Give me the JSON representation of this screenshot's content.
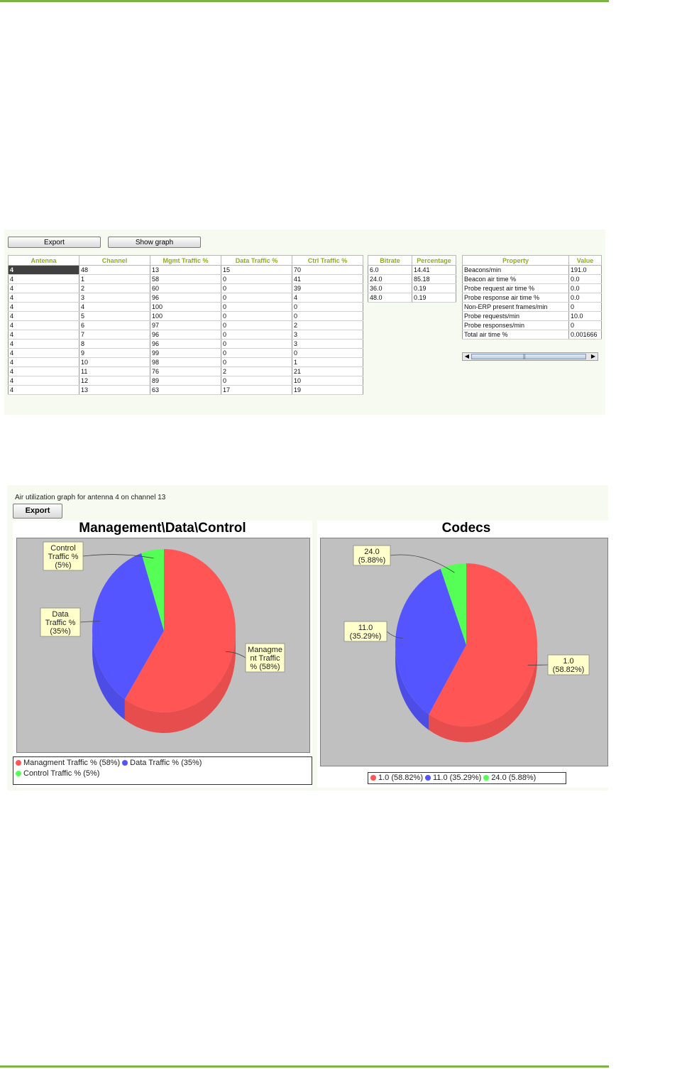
{
  "colors": {
    "rule": "#7cb342",
    "header_text": "#8aae1f",
    "mgmt": "#ff5555",
    "data": "#5555ff",
    "control": "#55ff55",
    "label_bg": "#ffffcc"
  },
  "toolbar": {
    "export_label": "Export",
    "show_graph_label": "Show graph"
  },
  "traffic_table": {
    "columns": [
      "Antenna",
      "Channel",
      "Mgmt Traffic %",
      "Data Traffic %",
      "Ctrl Traffic %"
    ],
    "rows": [
      [
        "4",
        "48",
        "13",
        "15",
        "70"
      ],
      [
        "4",
        "1",
        "58",
        "0",
        "41"
      ],
      [
        "4",
        "2",
        "60",
        "0",
        "39"
      ],
      [
        "4",
        "3",
        "96",
        "0",
        "4"
      ],
      [
        "4",
        "4",
        "100",
        "0",
        "0"
      ],
      [
        "4",
        "5",
        "100",
        "0",
        "0"
      ],
      [
        "4",
        "6",
        "97",
        "0",
        "2"
      ],
      [
        "4",
        "7",
        "96",
        "0",
        "3"
      ],
      [
        "4",
        "8",
        "96",
        "0",
        "3"
      ],
      [
        "4",
        "9",
        "99",
        "0",
        "0"
      ],
      [
        "4",
        "10",
        "98",
        "0",
        "1"
      ],
      [
        "4",
        "11",
        "76",
        "2",
        "21"
      ],
      [
        "4",
        "12",
        "89",
        "0",
        "10"
      ],
      [
        "4",
        "13",
        "63",
        "17",
        "19"
      ]
    ]
  },
  "bitrate_table": {
    "columns": [
      "Bitrate",
      "Percentage"
    ],
    "rows": [
      [
        "6.0",
        "14.41"
      ],
      [
        "24.0",
        "85.18"
      ],
      [
        "36.0",
        "0.19"
      ],
      [
        "48.0",
        "0.19"
      ]
    ]
  },
  "property_table": {
    "columns": [
      "Property",
      "Value"
    ],
    "rows": [
      [
        "Beacons/min",
        "191.0"
      ],
      [
        "Beacon air time %",
        "0.0"
      ],
      [
        "Probe request air time %",
        "0.0"
      ],
      [
        "Probe response air time %",
        "0.0"
      ],
      [
        "Non-ERP present frames/min",
        "0"
      ],
      [
        "Probe requests/min",
        "10.0"
      ],
      [
        "Probe responses/min",
        "0"
      ],
      [
        "Total air time %",
        "0.001666"
      ]
    ],
    "scrollbar_thumb_icon": "grip-icon"
  },
  "graph_panel": {
    "caption": "Air utilization graph for antenna 4 on channel 13",
    "export_label": "Export"
  },
  "chart_data": [
    {
      "type": "pie",
      "title": "Management\\Data\\Control",
      "slices": [
        {
          "label": "Managment Traffic %",
          "value": 58,
          "callout": [
            "Managme",
            "nt Traffic",
            "% (58%)"
          ],
          "legend": "Managment Traffic % (58%)",
          "color": "#ff5555"
        },
        {
          "label": "Data Traffic %",
          "value": 35,
          "callout": [
            "Data",
            "Traffic %",
            "(35%)"
          ],
          "legend": "Data Traffic % (35%)",
          "color": "#5555ff"
        },
        {
          "label": "Control Traffic %",
          "value": 5,
          "callout": [
            "Control",
            "Traffic %",
            "(5%)"
          ],
          "legend": "Control Traffic % (5%)",
          "color": "#55ff55"
        }
      ]
    },
    {
      "type": "pie",
      "title": "Codecs",
      "slices": [
        {
          "label": "1.0",
          "value": 58.82,
          "callout": [
            "1.0",
            "(58.82%)"
          ],
          "legend": "1.0 (58.82%)",
          "color": "#ff5555"
        },
        {
          "label": "11.0",
          "value": 35.29,
          "callout": [
            "11.0",
            "(35.29%)"
          ],
          "legend": "11.0 (35.29%)",
          "color": "#5555ff"
        },
        {
          "label": "24.0",
          "value": 5.88,
          "callout": [
            "24.0",
            "(5.88%)"
          ],
          "legend": "24.0 (5.88%)",
          "color": "#55ff55"
        }
      ]
    }
  ]
}
